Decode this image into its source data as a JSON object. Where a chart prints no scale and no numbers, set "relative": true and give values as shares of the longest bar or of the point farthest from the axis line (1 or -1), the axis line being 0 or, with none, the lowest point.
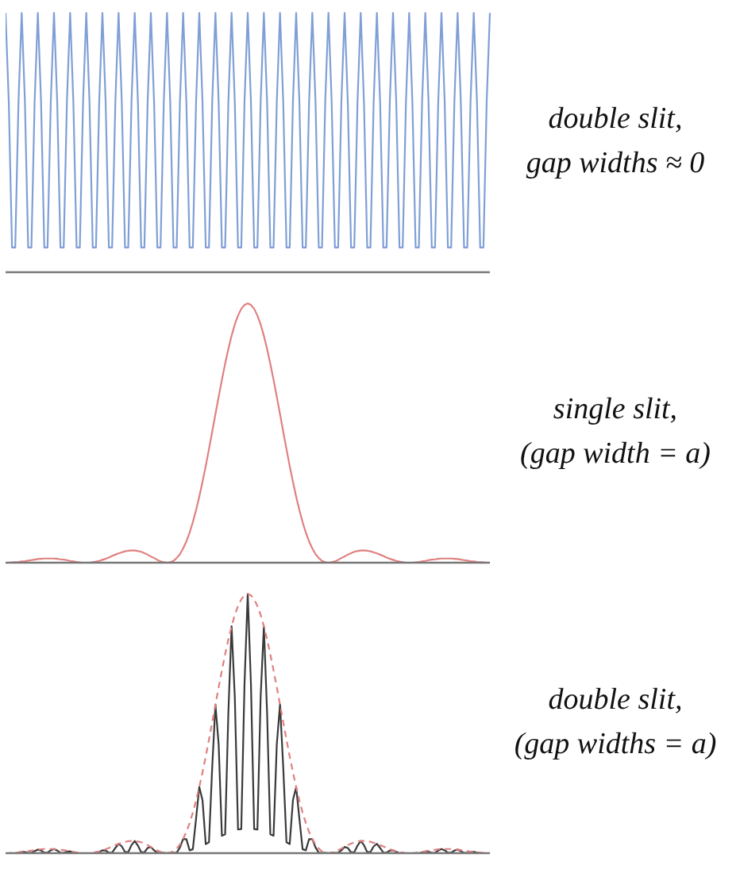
{
  "chart_data": [
    {
      "type": "line",
      "annotations": [
        "double slit,\ngap widths ≈ 0"
      ],
      "relative": true,
      "categories": [
        null,
        null,
        null,
        null,
        null,
        null,
        null,
        null,
        null,
        null,
        null,
        null,
        null,
        null,
        null,
        null,
        null,
        null,
        null,
        null,
        null,
        null,
        null,
        null,
        null,
        null,
        null,
        null,
        null,
        null,
        null,
        null,
        null,
        null,
        null,
        null,
        null,
        null,
        null,
        null,
        null,
        null,
        null,
        null,
        null,
        null,
        null,
        null,
        null,
        null,
        null,
        null,
        null,
        null,
        null,
        null,
        null,
        null,
        null,
        null,
        null,
        null,
        null,
        null,
        null,
        null,
        null,
        null,
        null,
        null,
        null,
        null,
        null,
        null,
        null,
        null,
        null,
        null,
        null,
        null,
        null,
        null,
        null,
        null,
        null,
        null,
        null,
        null,
        null,
        null,
        null,
        null,
        null,
        null,
        null,
        null,
        null,
        null,
        null,
        null,
        null,
        null,
        null,
        null,
        null,
        null,
        null,
        null,
        null,
        null,
        null,
        null,
        null,
        null,
        null,
        null,
        null,
        null,
        null,
        null,
        null,
        null,
        null,
        null,
        null,
        null,
        null,
        null,
        null,
        null,
        null,
        null,
        null,
        null,
        null,
        null,
        null,
        null,
        null,
        null,
        null,
        null,
        null,
        null,
        null,
        null,
        null,
        null,
        null,
        null,
        null
      ],
      "series": [
        {
          "color": "#7f9fd6",
          "values": [
            1,
            0.655,
            0.095,
            0.095,
            0.655,
            1,
            0.655,
            0.095,
            0.095,
            0.655,
            1,
            0.655,
            0.095,
            0.095,
            0.655,
            1,
            0.655,
            0.095,
            0.095,
            0.655,
            1,
            0.655,
            0.095,
            0.095,
            0.655,
            1,
            0.655,
            0.095,
            0.095,
            0.655,
            1,
            0.655,
            0.095,
            0.095,
            0.655,
            1,
            0.655,
            0.095,
            0.095,
            0.655,
            1,
            0.655,
            0.095,
            0.095,
            0.655,
            1,
            0.655,
            0.095,
            0.095,
            0.655,
            1,
            0.655,
            0.095,
            0.095,
            0.655,
            1,
            0.655,
            0.095,
            0.095,
            0.655,
            1,
            0.655,
            0.095,
            0.095,
            0.655,
            1,
            0.655,
            0.095,
            0.095,
            0.655,
            1,
            0.655,
            0.095,
            0.095,
            0.655,
            1,
            0.655,
            0.095,
            0.095,
            0.655,
            1,
            0.655,
            0.095,
            0.095,
            0.655,
            1,
            0.655,
            0.095,
            0.095,
            0.655,
            1,
            0.655,
            0.095,
            0.095,
            0.655,
            1,
            0.655,
            0.095,
            0.095,
            0.655,
            1,
            0.655,
            0.095,
            0.095,
            0.655,
            1,
            0.655,
            0.095,
            0.095,
            0.655,
            1,
            0.655,
            0.095,
            0.095,
            0.655,
            1,
            0.655,
            0.095,
            0.095,
            0.655,
            1,
            0.655,
            0.095,
            0.095,
            0.655,
            1,
            0.655,
            0.095,
            0.095,
            0.655,
            1,
            0.655,
            0.095,
            0.095,
            0.655,
            1,
            0.655,
            0.095,
            0.095,
            0.655,
            1,
            0.655,
            0.095,
            0.095,
            0.655,
            1,
            0.655,
            0.095,
            0.095,
            0.655,
            1
          ]
        }
      ]
    },
    {
      "type": "line",
      "annotations": [
        "single slit,\n(gap width = a)"
      ],
      "relative": true,
      "categories": [
        null,
        null,
        null,
        null,
        null,
        null,
        null,
        null,
        null,
        null,
        null,
        null,
        null,
        null,
        null,
        null,
        null,
        null,
        null,
        null,
        null,
        null,
        null,
        null,
        null,
        null,
        null,
        null,
        null,
        null,
        null,
        null,
        null,
        null,
        null,
        null,
        null,
        null,
        null,
        null,
        null,
        null,
        null,
        null,
        null,
        null,
        null,
        null,
        null,
        null,
        null,
        null,
        null,
        null,
        null,
        null,
        null,
        null,
        null,
        null,
        null,
        null,
        null,
        null,
        null,
        null,
        null,
        null,
        null,
        null,
        null,
        null,
        null,
        null,
        null,
        null,
        null,
        null,
        null,
        null,
        null,
        null,
        null,
        null,
        null,
        null,
        null,
        null,
        null,
        null,
        null,
        null,
        null,
        null,
        null,
        null,
        null,
        null,
        null,
        null,
        null,
        null,
        null,
        null,
        null,
        null,
        null,
        null,
        null,
        null,
        null,
        null,
        null,
        null,
        null,
        null,
        null,
        null,
        null,
        null,
        null,
        null,
        null,
        null,
        null,
        null,
        null,
        null,
        null,
        null,
        null,
        null,
        null,
        null,
        null,
        null,
        null,
        null,
        null,
        null,
        null,
        null,
        null,
        null,
        null,
        null,
        null,
        null,
        null,
        null,
        null
      ],
      "series": [
        {
          "color": "#e08080",
          "values": [
            0,
            0,
            0.001,
            0.002,
            0.003,
            0.005,
            0.006,
            0.008,
            0.01,
            0.012,
            0.014,
            0.015,
            0.016,
            0.016,
            0.016,
            0.016,
            0.015,
            0.013,
            0.012,
            0.01,
            0.007,
            0.005,
            0.003,
            0.001,
            0,
            0,
            0,
            0.002,
            0.004,
            0.007,
            0.011,
            0.015,
            0.02,
            0.026,
            0.031,
            0.036,
            0.04,
            0.044,
            0.046,
            0.047,
            0.047,
            0.045,
            0.042,
            0.037,
            0.031,
            0.024,
            0.018,
            0.011,
            0.005,
            0.002,
            0,
            0.002,
            0.007,
            0.018,
            0.033,
            0.055,
            0.082,
            0.116,
            0.156,
            0.203,
            0.255,
            0.312,
            0.373,
            0.438,
            0.505,
            0.573,
            0.64,
            0.705,
            0.767,
            0.824,
            0.875,
            0.919,
            0.953,
            0.979,
            0.994,
            1,
            0.994,
            0.979,
            0.953,
            0.919,
            0.875,
            0.824,
            0.767,
            0.705,
            0.64,
            0.573,
            0.505,
            0.438,
            0.373,
            0.312,
            0.255,
            0.203,
            0.156,
            0.116,
            0.082,
            0.055,
            0.033,
            0.018,
            0.007,
            0.002,
            0,
            0.002,
            0.005,
            0.011,
            0.018,
            0.024,
            0.031,
            0.037,
            0.042,
            0.045,
            0.047,
            0.047,
            0.046,
            0.044,
            0.04,
            0.036,
            0.031,
            0.026,
            0.02,
            0.015,
            0.011,
            0.007,
            0.004,
            0.002,
            0,
            0,
            0,
            0.001,
            0.003,
            0.005,
            0.007,
            0.01,
            0.012,
            0.013,
            0.015,
            0.016,
            0.016,
            0.016,
            0.016,
            0.015,
            0.014,
            0.012,
            0.01,
            0.008,
            0.006,
            0.005,
            0.003,
            0.002,
            0.001,
            0,
            0
          ]
        }
      ]
    },
    {
      "type": "line",
      "annotations": [
        "double slit,\n(gap widths = a)"
      ],
      "relative": true,
      "categories": [
        null,
        null,
        null,
        null,
        null,
        null,
        null,
        null,
        null,
        null,
        null,
        null,
        null,
        null,
        null,
        null,
        null,
        null,
        null,
        null,
        null,
        null,
        null,
        null,
        null,
        null,
        null,
        null,
        null,
        null,
        null,
        null,
        null,
        null,
        null,
        null,
        null,
        null,
        null,
        null,
        null,
        null,
        null,
        null,
        null,
        null,
        null,
        null,
        null,
        null,
        null,
        null,
        null,
        null,
        null,
        null,
        null,
        null,
        null,
        null,
        null,
        null,
        null,
        null,
        null,
        null,
        null,
        null,
        null,
        null,
        null,
        null,
        null,
        null,
        null,
        null,
        null,
        null,
        null,
        null,
        null,
        null,
        null,
        null,
        null,
        null,
        null,
        null,
        null,
        null,
        null,
        null,
        null,
        null,
        null,
        null,
        null,
        null,
        null,
        null,
        null,
        null,
        null,
        null,
        null,
        null,
        null,
        null,
        null,
        null,
        null,
        null,
        null,
        null,
        null,
        null,
        null,
        null,
        null,
        null,
        null,
        null,
        null,
        null,
        null,
        null,
        null,
        null,
        null,
        null,
        null,
        null,
        null,
        null,
        null,
        null,
        null,
        null,
        null,
        null,
        null,
        null,
        null,
        null,
        null,
        null,
        null,
        null,
        null,
        null,
        null
      ],
      "series": [
        {
          "color": "#3a3a3a",
          "values": [
            0,
            0,
            0,
            0,
            0.002,
            0.005,
            0.004,
            0.001,
            0.001,
            0.008,
            0.014,
            0.01,
            0.002,
            0.002,
            0.011,
            0.016,
            0.01,
            0.001,
            0.001,
            0.006,
            0.007,
            0.003,
            0,
            0,
            0,
            0,
            0,
            0,
            0,
            0.005,
            0.011,
            0.01,
            0.002,
            0.002,
            0.02,
            0.036,
            0.026,
            0.004,
            0.004,
            0.031,
            0.047,
            0.029,
            0.004,
            0.003,
            0.02,
            0.024,
            0.011,
            0.001,
            0.001,
            0.001,
            0,
            0.001,
            0.001,
            0.002,
            0.022,
            0.055,
            0.054,
            0.011,
            0.015,
            0.133,
            0.255,
            0.204,
            0.035,
            0.042,
            0.331,
            0.573,
            0.419,
            0.067,
            0.073,
            0.54,
            0.875,
            0.602,
            0.091,
            0.093,
            0.651,
            1,
            0.651,
            0.093,
            0.091,
            0.602,
            0.875,
            0.54,
            0.073,
            0.067,
            0.419,
            0.573,
            0.331,
            0.042,
            0.035,
            0.204,
            0.255,
            0.133,
            0.015,
            0.011,
            0.054,
            0.055,
            0.022,
            0.002,
            0.001,
            0.001,
            0,
            0.001,
            0.001,
            0.001,
            0.011,
            0.024,
            0.02,
            0.003,
            0.004,
            0.029,
            0.047,
            0.031,
            0.004,
            0.004,
            0.026,
            0.036,
            0.02,
            0.002,
            0.002,
            0.01,
            0.011,
            0.005,
            0,
            0,
            0,
            0,
            0,
            0,
            0,
            0.003,
            0.007,
            0.006,
            0.001,
            0.001,
            0.01,
            0.016,
            0.011,
            0.002,
            0.002,
            0.01,
            0.014,
            0.008,
            0.001,
            0.001,
            0.004,
            0.005,
            0.002,
            0,
            0,
            0,
            0
          ]
        },
        {
          "color": "#e08080",
          "line_style": "dashed",
          "values": [
            0,
            0,
            0.001,
            0.002,
            0.003,
            0.005,
            0.006,
            0.008,
            0.01,
            0.012,
            0.014,
            0.015,
            0.016,
            0.016,
            0.016,
            0.016,
            0.015,
            0.013,
            0.012,
            0.01,
            0.007,
            0.005,
            0.003,
            0.001,
            0,
            0,
            0,
            0.002,
            0.004,
            0.007,
            0.011,
            0.015,
            0.02,
            0.026,
            0.031,
            0.036,
            0.04,
            0.044,
            0.046,
            0.047,
            0.047,
            0.045,
            0.042,
            0.037,
            0.031,
            0.024,
            0.018,
            0.011,
            0.005,
            0.002,
            0,
            0.002,
            0.007,
            0.018,
            0.033,
            0.055,
            0.082,
            0.116,
            0.156,
            0.203,
            0.255,
            0.312,
            0.373,
            0.438,
            0.505,
            0.573,
            0.64,
            0.705,
            0.767,
            0.824,
            0.875,
            0.919,
            0.953,
            0.979,
            0.994,
            1,
            0.994,
            0.979,
            0.953,
            0.919,
            0.875,
            0.824,
            0.767,
            0.705,
            0.64,
            0.573,
            0.505,
            0.438,
            0.373,
            0.312,
            0.255,
            0.203,
            0.156,
            0.116,
            0.082,
            0.055,
            0.033,
            0.018,
            0.007,
            0.002,
            0,
            0.002,
            0.005,
            0.011,
            0.018,
            0.024,
            0.031,
            0.037,
            0.042,
            0.045,
            0.047,
            0.047,
            0.046,
            0.044,
            0.04,
            0.036,
            0.031,
            0.026,
            0.02,
            0.015,
            0.011,
            0.007,
            0.004,
            0.002,
            0,
            0,
            0,
            0.001,
            0.003,
            0.005,
            0.007,
            0.01,
            0.012,
            0.013,
            0.015,
            0.016,
            0.016,
            0.016,
            0.016,
            0.015,
            0.014,
            0.012,
            0.01,
            0.008,
            0.006,
            0.005,
            0.003,
            0.002,
            0.001,
            0,
            0
          ]
        }
      ]
    }
  ]
}
